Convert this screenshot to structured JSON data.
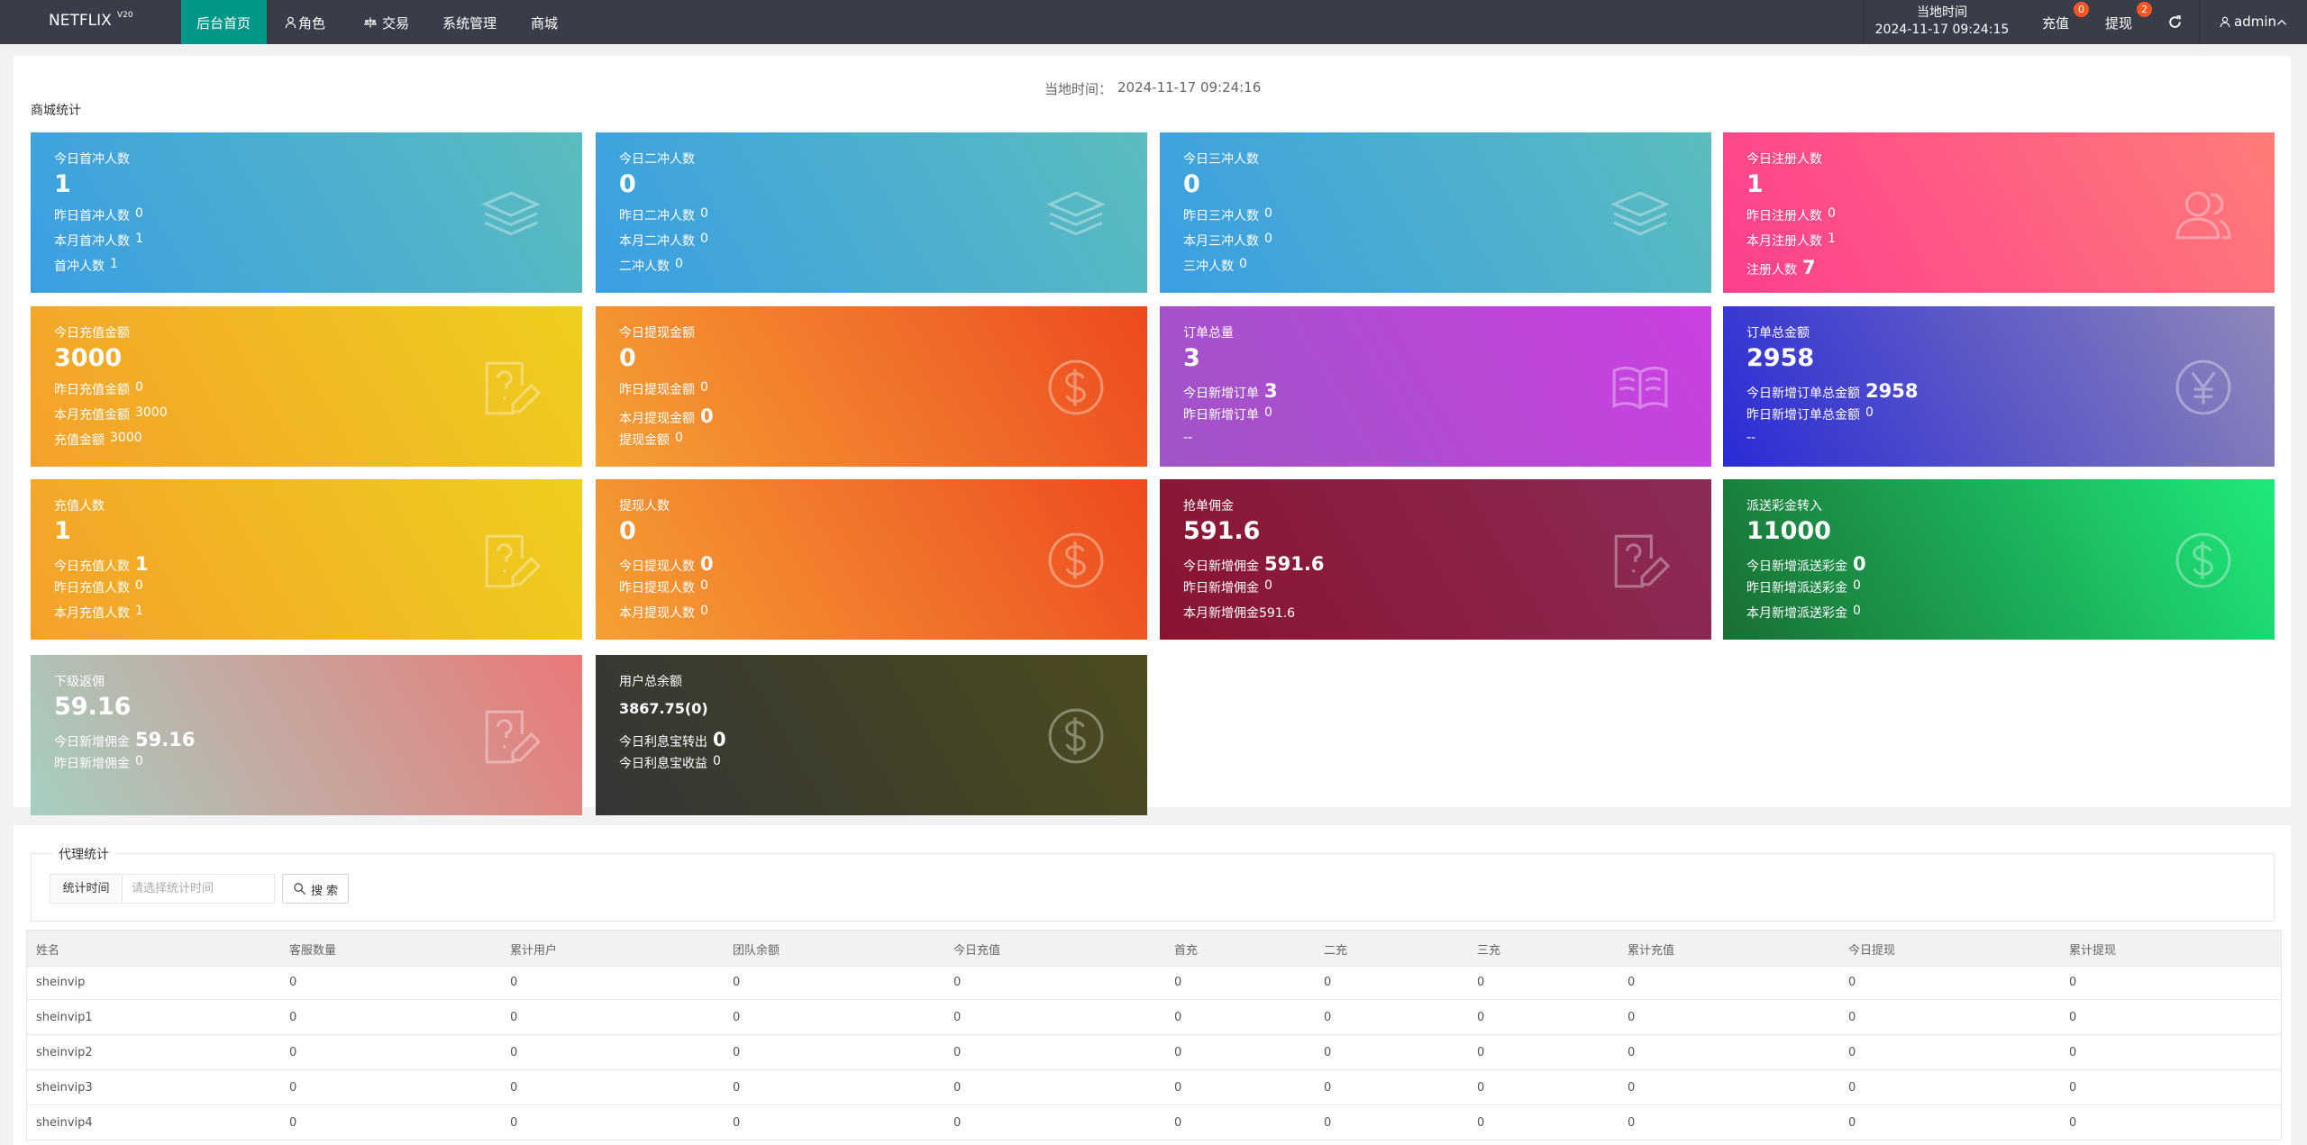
{
  "nav": {
    "logo": "NETFLIX",
    "logo_sup": "V20",
    "items": [
      "后台首页",
      "角色",
      "交易",
      "系统管理",
      "商城"
    ],
    "active": 0,
    "time_label": "当地时间",
    "time": "2024-11-17 09:24:15",
    "recharge": "充值",
    "recharge_badge": 0,
    "withdraw": "提现",
    "withdraw_badge": 2,
    "user": "admin"
  },
  "header": {
    "time_label": "当地时间：",
    "time": "2024-11-17 09:24:16",
    "section": "商城统计"
  },
  "cards": [
    {
      "title": "今日首冲人数",
      "value": 1,
      "colors": [
        "#3a9fe2",
        "#5bbcbe"
      ],
      "lines": [
        {
          "label": "昨日首冲人数",
          "value": 0
        },
        {
          "label": "本月首冲人数",
          "value": 1
        },
        {
          "label": "首冲人数",
          "value": 1
        }
      ]
    },
    {
      "title": "今日二冲人数",
      "value": 0,
      "colors": [
        "#3a9fe2",
        "#5bbcbe"
      ],
      "lines": [
        {
          "label": "昨日二冲人数",
          "value": 0
        },
        {
          "label": "本月二冲人数",
          "value": 0
        },
        {
          "label": "二冲人数",
          "value": 0
        }
      ]
    },
    {
      "title": "今日三冲人数",
      "value": 0,
      "colors": [
        "#3a9fe2",
        "#5bbcbe"
      ],
      "lines": [
        {
          "label": "昨日三冲人数",
          "value": 0
        },
        {
          "label": "本月三冲人数",
          "value": 0
        },
        {
          "label": "三冲人数",
          "value": 0
        }
      ]
    },
    {
      "title": "今日注册人数",
      "value": 1,
      "colors": [
        "#fd3e8e",
        "#ff7c78"
      ],
      "lines": [
        {
          "label": "昨日注册人数",
          "value": 0
        },
        {
          "label": "本月注册人数",
          "value": 1
        },
        {
          "label": "注册人数",
          "value": 7,
          "bold": true
        }
      ]
    },
    {
      "title": "今日充值金额",
      "value": 3000,
      "colors": [
        "#f4a12b",
        "#eecf1c"
      ],
      "lines": [
        {
          "label": "昨日充值金额",
          "value": 0
        },
        {
          "label": "本月充值金额",
          "value": 3000
        },
        {
          "label": "充值金额",
          "value": 3000
        }
      ]
    },
    {
      "title": "今日提现金额",
      "value": 0,
      "colors": [
        "#f5a035",
        "#ed4a1f"
      ],
      "lines": [
        {
          "label": "昨日提现金额",
          "value": 0
        },
        {
          "label": "本月提现金额",
          "value": 0,
          "bold": true
        },
        {
          "label": "提现金额",
          "value": 0
        }
      ]
    },
    {
      "title": "订单总量",
      "value": 3,
      "colors": [
        "#9e55c6",
        "#cc3fe2"
      ],
      "lines": [
        {
          "label": "今日新增订单",
          "value": 3,
          "bold": true
        },
        {
          "label": "昨日新增订单",
          "value": 0
        },
        {
          "label": "--"
        }
      ]
    },
    {
      "title": "订单总金额",
      "value": 2958,
      "colors": [
        "#2b2bd6",
        "#8e88b8"
      ],
      "lines": [
        {
          "label": "今日新增订单总金额",
          "value": 2958,
          "bold": true
        },
        {
          "label": "昨日新增订单总金额",
          "value": 0
        },
        {
          "label": "--"
        }
      ]
    },
    {
      "title": "充值人数",
      "value": 1,
      "colors": [
        "#f4a12b",
        "#eecf1c"
      ],
      "lines": [
        {
          "label": "今日充值人数",
          "value": 1,
          "bold": true
        },
        {
          "label": "昨日充值人数",
          "value": 0
        },
        {
          "label": "本月充值人数",
          "value": 1
        }
      ]
    },
    {
      "title": "提现人数",
      "value": 0,
      "colors": [
        "#f5a035",
        "#ed4a1f"
      ],
      "lines": [
        {
          "label": "今日提现人数",
          "value": 0,
          "bold": true
        },
        {
          "label": "昨日提现人数",
          "value": 0
        },
        {
          "label": "本月提现人数",
          "value": 0
        }
      ]
    },
    {
      "title": "抢单佣金",
      "value": 591.6,
      "colors": [
        "#8a1330",
        "#8b2c58"
      ],
      "lines": [
        {
          "label": "今日新增佣金",
          "value": 591.6,
          "bold": true
        },
        {
          "label": "昨日新增佣金",
          "value": 0
        },
        {
          "label": "本月新增佣金591.6"
        }
      ]
    },
    {
      "title": "派送彩金转入",
      "value": 11000,
      "colors": [
        "#1a6e35",
        "#1eea7a"
      ],
      "lines": [
        {
          "label": "今日新增派送彩金",
          "value": 0,
          "bold": true
        },
        {
          "label": "昨日新增派送彩金",
          "value": 0
        },
        {
          "label": "本月新增派送彩金",
          "value": 0
        }
      ]
    },
    {
      "title": "下级返佣",
      "value": 59.16,
      "colors": [
        "#a6cfc0",
        "#ea7878"
      ],
      "lines": [
        {
          "label": "今日新增佣金",
          "value": 59.16,
          "bold": true
        },
        {
          "label": "昨日新增佣金",
          "value": 0
        }
      ]
    },
    {
      "title": "用户总余额",
      "value": "3867.75(0)",
      "value_size": "small",
      "colors": [
        "#353535",
        "#4d4c1e"
      ],
      "lines": [
        {
          "label": "今日利息宝转出",
          "value": 0,
          "bold": true
        },
        {
          "label": "今日利息宝收益",
          "value": 0
        }
      ]
    }
  ],
  "agent": {
    "legend": "代理统计",
    "filter_label": "统计时间",
    "filter_placeholder": "请选择统计时间",
    "button": "搜 索",
    "columns": [
      "姓名",
      "客服数量",
      "累计用户",
      "团队余额",
      "今日充值",
      "首充",
      "二充",
      "三充",
      "累计充值",
      "今日提现",
      "累计提现"
    ],
    "rows": [
      [
        "sheinvip",
        0,
        0,
        0,
        0,
        0,
        0,
        0,
        0,
        0,
        0
      ],
      [
        "sheinvip1",
        0,
        0,
        0,
        0,
        0,
        0,
        0,
        0,
        0,
        0
      ],
      [
        "sheinvip2",
        0,
        0,
        0,
        0,
        0,
        0,
        0,
        0,
        0,
        0
      ],
      [
        "sheinvip3",
        0,
        0,
        0,
        0,
        0,
        0,
        0,
        0,
        0,
        0
      ],
      [
        "sheinvip4",
        0,
        0,
        0,
        0,
        0,
        0,
        0,
        0,
        0,
        0
      ]
    ]
  }
}
